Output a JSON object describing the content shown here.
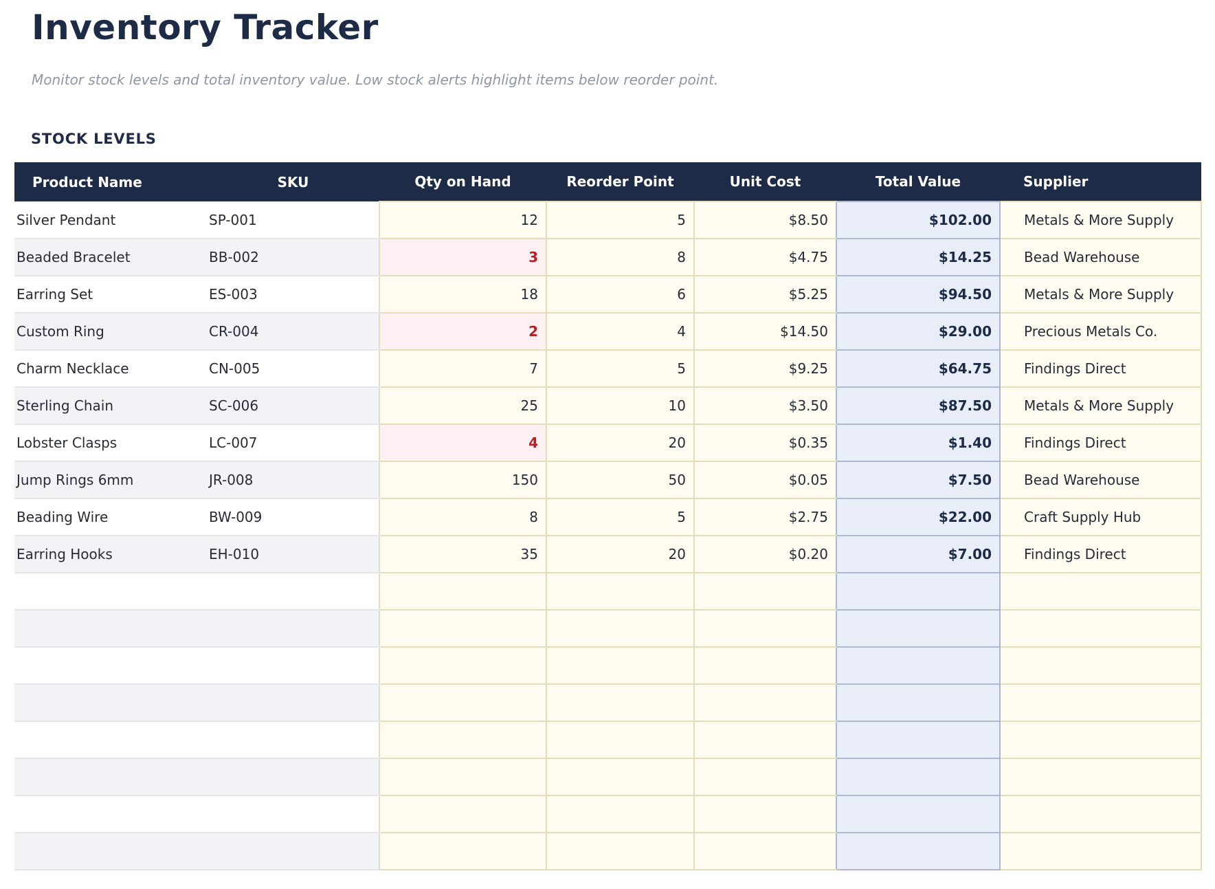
{
  "page": {
    "title": "Inventory Tracker",
    "subtitle": "Monitor stock levels and total inventory value. Low stock alerts highlight items below reorder point.",
    "section_title": "STOCK LEVELS"
  },
  "table": {
    "columns": [
      "Product Name",
      "SKU",
      "Qty on Hand",
      "Reorder Point",
      "Unit Cost",
      "Total Value",
      "Supplier"
    ],
    "rows": [
      {
        "product": "Silver Pendant",
        "sku": "SP-001",
        "qty": "12",
        "reorder_point": "5",
        "unit_cost": "$8.50",
        "total_value": "$102.00",
        "supplier": "Metals & More Supply",
        "low_stock": false
      },
      {
        "product": "Beaded Bracelet",
        "sku": "BB-002",
        "qty": "3",
        "reorder_point": "8",
        "unit_cost": "$4.75",
        "total_value": "$14.25",
        "supplier": "Bead Warehouse",
        "low_stock": true
      },
      {
        "product": "Earring Set",
        "sku": "ES-003",
        "qty": "18",
        "reorder_point": "6",
        "unit_cost": "$5.25",
        "total_value": "$94.50",
        "supplier": "Metals & More Supply",
        "low_stock": false
      },
      {
        "product": "Custom Ring",
        "sku": "CR-004",
        "qty": "2",
        "reorder_point": "4",
        "unit_cost": "$14.50",
        "total_value": "$29.00",
        "supplier": "Precious Metals Co.",
        "low_stock": true
      },
      {
        "product": "Charm Necklace",
        "sku": "CN-005",
        "qty": "7",
        "reorder_point": "5",
        "unit_cost": "$9.25",
        "total_value": "$64.75",
        "supplier": "Findings Direct",
        "low_stock": false
      },
      {
        "product": "Sterling Chain",
        "sku": "SC-006",
        "qty": "25",
        "reorder_point": "10",
        "unit_cost": "$3.50",
        "total_value": "$87.50",
        "supplier": "Metals & More Supply",
        "low_stock": false
      },
      {
        "product": "Lobster Clasps",
        "sku": "LC-007",
        "qty": "4",
        "reorder_point": "20",
        "unit_cost": "$0.35",
        "total_value": "$1.40",
        "supplier": "Findings Direct",
        "low_stock": true
      },
      {
        "product": "Jump Rings 6mm",
        "sku": "JR-008",
        "qty": "150",
        "reorder_point": "50",
        "unit_cost": "$0.05",
        "total_value": "$7.50",
        "supplier": "Bead Warehouse",
        "low_stock": false
      },
      {
        "product": "Beading Wire",
        "sku": "BW-009",
        "qty": "8",
        "reorder_point": "5",
        "unit_cost": "$2.75",
        "total_value": "$22.00",
        "supplier": "Craft Supply Hub",
        "low_stock": false
      },
      {
        "product": "Earring Hooks",
        "sku": "EH-010",
        "qty": "35",
        "reorder_point": "20",
        "unit_cost": "$0.20",
        "total_value": "$7.00",
        "supplier": "Findings Direct",
        "low_stock": false
      }
    ],
    "empty_row_count": 8
  },
  "colors": {
    "navy": "#1d2b46",
    "body-text": "#262b35",
    "subtitle": "#8e96a5",
    "cream": "#fffbf0",
    "tan-border": "#e5dcba",
    "blue-bg": "#e9edf8",
    "blue-border": "#aeb7cf",
    "pink": "#fdf0f2",
    "red": "#b42025",
    "alt-row": "#f2f3f6",
    "gray-border": "#e4e6ea"
  }
}
